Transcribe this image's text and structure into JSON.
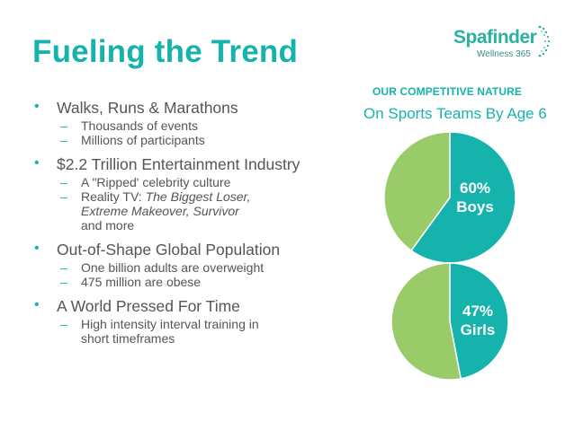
{
  "slide": {
    "title": "Fueling the Trend"
  },
  "logo": {
    "name": "Spafinder",
    "sub": "Wellness 365"
  },
  "bullets": [
    {
      "text": "Walks, Runs & Marathons",
      "subs": [
        "Thousands of events",
        "Millions of participants"
      ]
    },
    {
      "text": "$2.2 Trillion Entertainment Industry",
      "subs": [
        "A \"Ripped' celebrity culture"
      ],
      "sub_rich": {
        "prefix": "Reality TV: ",
        "italic_line1": "The Biggest Loser,",
        "italic_line2": "Extreme Makeover, Survivor",
        "suffix": "and more"
      }
    },
    {
      "text": "Out-of-Shape Global Population",
      "subs": [
        "One billion adults are overweight",
        "475 million are obese"
      ]
    },
    {
      "text": "A World Pressed For Time",
      "subs": [
        "High intensity interval training in",
        "short timeframes"
      ]
    }
  ],
  "colors": {
    "teal": "#16b3ac",
    "green": "#9acb69",
    "text": "#555555"
  },
  "chart_data": [
    {
      "type": "pie",
      "title": "OUR COMPETITIVE NATURE",
      "subtitle": "On Sports Teams By Age 6",
      "slices": [
        {
          "label": "Boys",
          "value": 60,
          "display": "60%",
          "color": "#16b3ac"
        },
        {
          "label": "",
          "value": 40,
          "display": "",
          "color": "#9acb69"
        }
      ]
    },
    {
      "type": "pie",
      "slices": [
        {
          "label": "Girls",
          "value": 47,
          "display": "47%",
          "color": "#16b3ac"
        },
        {
          "label": "",
          "value": 53,
          "display": "",
          "color": "#9acb69"
        }
      ]
    }
  ]
}
